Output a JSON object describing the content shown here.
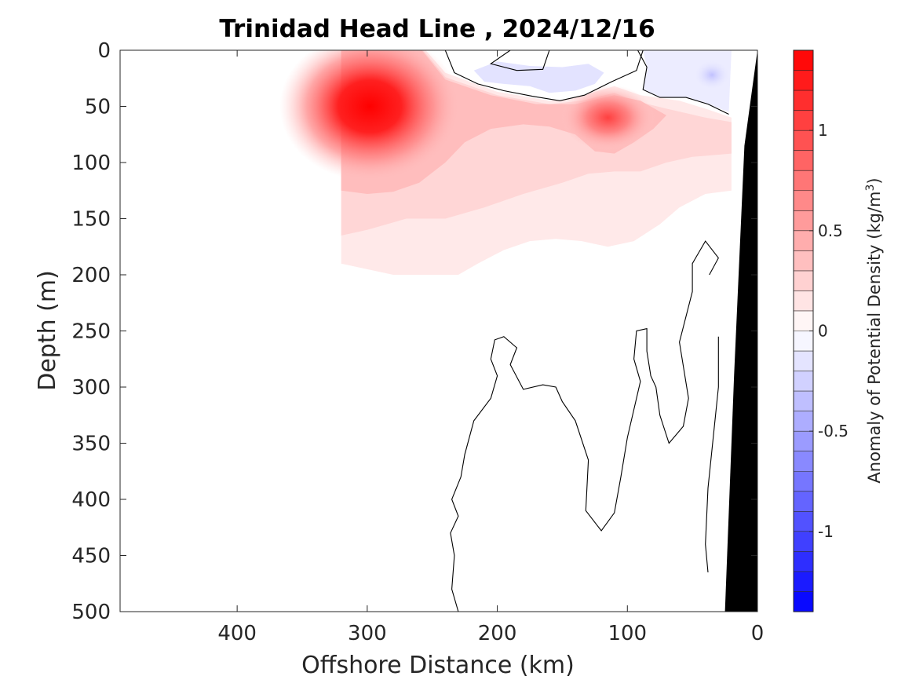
{
  "chart_data": {
    "type": "contour",
    "title": "Trinidad Head Line , 2024/12/16",
    "xlabel": "Offshore Distance (km)",
    "ylabel": "Depth (m)",
    "colorbar_label": "Anomaly of Potential Density (kg/m",
    "colorbar_label_sup": "3",
    "colorbar_label_end": ")",
    "xlim": [
      490,
      0
    ],
    "ylim": [
      0,
      500
    ],
    "x_reversed": true,
    "y_reversed": true,
    "x_ticks": [
      400,
      300,
      200,
      100,
      0
    ],
    "y_ticks": [
      0,
      50,
      100,
      150,
      200,
      250,
      300,
      350,
      400,
      450,
      500
    ],
    "colorbar": {
      "range": [
        -1.4,
        1.4
      ],
      "levels": 28,
      "ticks": [
        -1,
        -0.5,
        0,
        0.5,
        1
      ],
      "tick_labels": [
        "-1",
        "-0.5",
        "0",
        "0.5",
        "1"
      ],
      "colors": {
        "negative": "#0000ff",
        "zero": "#ffffff",
        "positive": "#ff0000"
      }
    },
    "data_extent": {
      "x_min": 20,
      "x_max": 320
    },
    "features": [
      {
        "label": "core",
        "x": 300,
        "y": 50,
        "value": 1.4
      },
      {
        "label": "core",
        "x": 115,
        "y": 60,
        "value": 0.9
      },
      {
        "label": "core",
        "x": 180,
        "y": 30,
        "value": -0.2
      },
      {
        "label": "core",
        "x": 40,
        "y": 20,
        "value": -0.3
      }
    ],
    "bathymetry": [
      [
        0,
        0
      ],
      [
        10,
        85
      ],
      [
        18,
        290
      ],
      [
        25,
        500
      ],
      [
        0,
        500
      ]
    ],
    "zero_contours": [
      [
        [
          240,
          0
        ],
        [
          233,
          20
        ],
        [
          215,
          30
        ],
        [
          195,
          36
        ],
        [
          173,
          41
        ],
        [
          152,
          45
        ],
        [
          133,
          40
        ],
        [
          112,
          28
        ],
        [
          93,
          18
        ],
        [
          88,
          0
        ]
      ],
      [
        [
          190,
          0
        ],
        [
          205,
          12
        ],
        [
          185,
          18
        ],
        [
          165,
          17
        ],
        [
          160,
          0
        ]
      ],
      [
        [
          92,
          0
        ],
        [
          85,
          15
        ],
        [
          88,
          35
        ],
        [
          75,
          42
        ],
        [
          55,
          42
        ],
        [
          38,
          48
        ],
        [
          22,
          57
        ]
      ],
      [
        [
          230,
          500
        ],
        [
          235,
          480
        ],
        [
          233,
          450
        ],
        [
          236,
          430
        ],
        [
          230,
          415
        ],
        [
          235,
          400
        ],
        [
          228,
          380
        ],
        [
          225,
          360
        ],
        [
          218,
          330
        ],
        [
          205,
          310
        ],
        [
          200,
          290
        ],
        [
          205,
          275
        ],
        [
          202,
          258
        ],
        [
          195,
          255
        ],
        [
          185,
          265
        ],
        [
          190,
          280
        ],
        [
          180,
          302
        ],
        [
          165,
          298
        ],
        [
          155,
          300
        ],
        [
          150,
          313
        ],
        [
          140,
          330
        ],
        [
          130,
          365
        ],
        [
          132,
          410
        ],
        [
          120,
          428
        ],
        [
          110,
          412
        ],
        [
          105,
          380
        ],
        [
          100,
          345
        ],
        [
          90,
          295
        ],
        [
          95,
          275
        ],
        [
          93,
          250
        ],
        [
          85,
          248
        ],
        [
          85,
          268
        ],
        [
          82,
          290
        ],
        [
          78,
          300
        ],
        [
          75,
          325
        ],
        [
          68,
          350
        ],
        [
          57,
          335
        ],
        [
          53,
          310
        ],
        [
          60,
          260
        ],
        [
          50,
          215
        ],
        [
          50,
          190
        ],
        [
          40,
          170
        ],
        [
          30,
          185
        ],
        [
          37,
          200
        ]
      ],
      [
        [
          38,
          465
        ],
        [
          40,
          440
        ],
        [
          38,
          390
        ],
        [
          30,
          300
        ],
        [
          30,
          255
        ]
      ]
    ]
  }
}
